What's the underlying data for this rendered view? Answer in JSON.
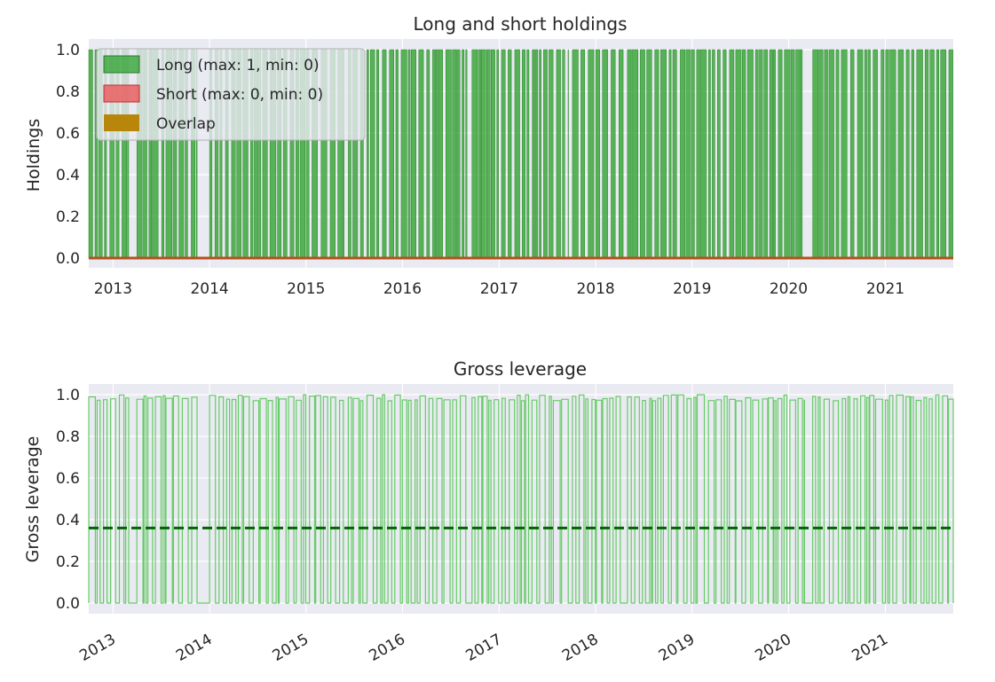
{
  "chart_data": [
    {
      "type": "area",
      "title": "Long and short holdings",
      "xlabel": "",
      "ylabel": "Holdings",
      "ylim": [
        0,
        1.05
      ],
      "grid": true,
      "legend_position": "top-left",
      "x_range": [
        "2012-10-01",
        "2021-09-15"
      ],
      "x_ticks": [
        "2013",
        "2014",
        "2015",
        "2016",
        "2017",
        "2018",
        "2019",
        "2020",
        "2021"
      ],
      "y_ticks": [
        "0.0",
        "0.2",
        "0.4",
        "0.6",
        "0.8",
        "1.0"
      ],
      "series": [
        {
          "name": "Long (max: 1, min: 0)",
          "color": "#2ca02c",
          "description": "holding is 1 on the listed date ranges and 0 otherwise",
          "on_periods": [
            [
              "2012-10-01",
              "2013-03-01"
            ],
            [
              "2013-04-01",
              "2013-11-15"
            ],
            [
              "2014-01-01",
              "2015-05-25"
            ],
            [
              "2015-06-10",
              "2016-09-01"
            ],
            [
              "2016-09-20",
              "2017-09-20"
            ],
            [
              "2017-10-05",
              "2018-04-15"
            ],
            [
              "2018-05-01",
              "2020-03-01"
            ],
            [
              "2020-04-01",
              "2021-09-15"
            ]
          ]
        },
        {
          "name": "Short (max: 0, min: 0)",
          "color": "#d62728",
          "values": [
            0,
            0
          ]
        },
        {
          "name": "Overlap",
          "color": "#b8860b",
          "values": [
            0,
            0
          ]
        }
      ]
    },
    {
      "type": "line",
      "title": "Gross leverage",
      "xlabel": "",
      "ylabel": "Gross leverage",
      "ylim": [
        0,
        1.05
      ],
      "grid": true,
      "x_range": [
        "2012-10-01",
        "2021-09-15"
      ],
      "x_ticks": [
        "2013",
        "2014",
        "2015",
        "2016",
        "2017",
        "2018",
        "2019",
        "2020",
        "2021"
      ],
      "y_ticks": [
        "0.0",
        "0.2",
        "0.4",
        "0.6",
        "0.8",
        "1.0"
      ],
      "series": [
        {
          "color": "#66cc66",
          "description": "gross leverage toggles between about 0 and 1 with the holdings periods",
          "max": 1.0,
          "min": 0.0
        },
        {
          "color": "#006400",
          "style": "dashed",
          "value": 0.36
        }
      ]
    }
  ]
}
